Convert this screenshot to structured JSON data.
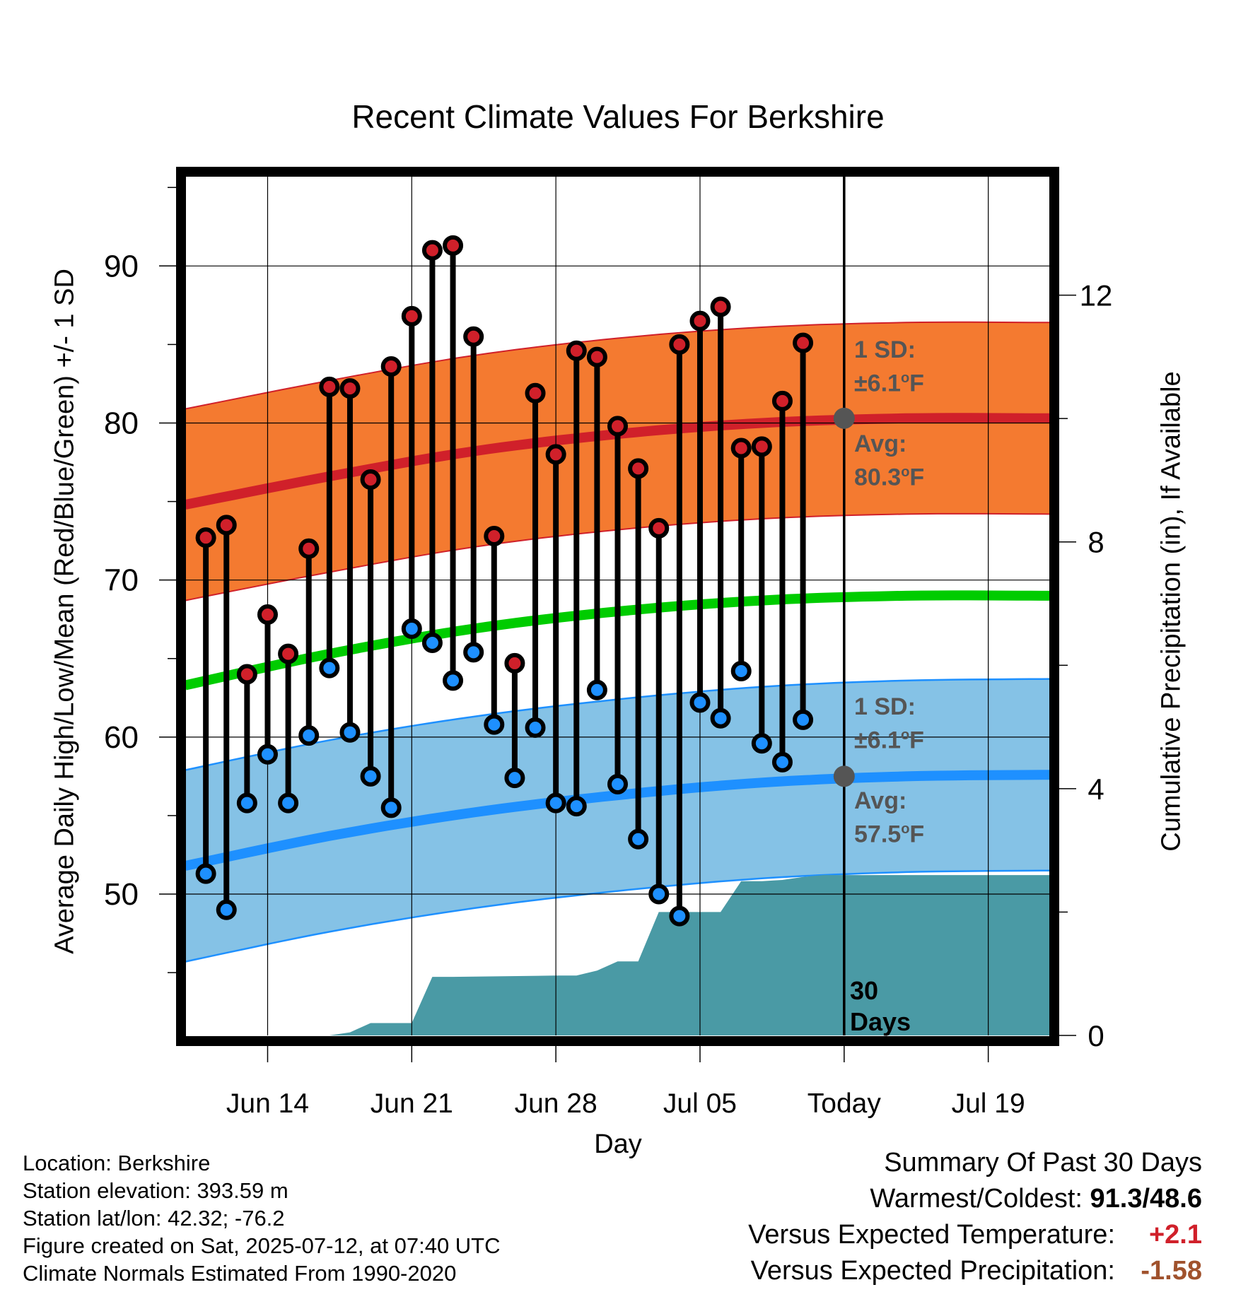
{
  "chart_data": {
    "type": "line",
    "title": "Recent Climate Values For Berkshire",
    "xlabel": "Day",
    "ylabel": "Average Daily High/Low/Mean (Red/Blue/Green) +/- 1 SD",
    "ylabel_right": "Cumulative Precipitation (in), If Available",
    "ylim": [
      41,
      96
    ],
    "ylim_right": [
      0,
      14
    ],
    "x_range": [
      "2025-06-10",
      "2025-07-22"
    ],
    "grid": true,
    "x_ticks": [
      {
        "date": "2025-06-14",
        "label": "Jun 14"
      },
      {
        "date": "2025-06-21",
        "label": "Jun 21"
      },
      {
        "date": "2025-06-28",
        "label": "Jun 28"
      },
      {
        "date": "2025-07-05",
        "label": "Jul 05"
      },
      {
        "date": "2025-07-12",
        "label": "Today"
      },
      {
        "date": "2025-07-19",
        "label": "Jul 19"
      }
    ],
    "y_ticks": [
      50,
      60,
      70,
      80,
      90
    ],
    "y_ticks_right": [
      0,
      4,
      8,
      12
    ],
    "today": "2025-07-12",
    "colors": {
      "high_band": "#f47a30",
      "high_mean": "#d0202a",
      "low_band": "#85c2e6",
      "low_mean": "#1e90ff",
      "mean_line": "#00cc00",
      "precip": "#4a9aa5",
      "high_marker": "#d0202a",
      "low_marker": "#1e90ff"
    },
    "normal_high": {
      "dates": [
        "2025-06-10",
        "2025-06-17",
        "2025-06-24",
        "2025-07-01",
        "2025-07-08",
        "2025-07-15",
        "2025-07-22"
      ],
      "mean": [
        74.8,
        76.6,
        78.2,
        79.3,
        80.0,
        80.3,
        80.3
      ],
      "sd": 6.1
    },
    "normal_low": {
      "dates": [
        "2025-06-10",
        "2025-06-17",
        "2025-06-24",
        "2025-07-01",
        "2025-07-08",
        "2025-07-15",
        "2025-07-22"
      ],
      "mean": [
        51.8,
        53.7,
        55.2,
        56.3,
        57.1,
        57.5,
        57.6
      ],
      "sd": 6.1
    },
    "normal_mean": {
      "dates": [
        "2025-06-10",
        "2025-06-17",
        "2025-06-24",
        "2025-07-01",
        "2025-07-08",
        "2025-07-15",
        "2025-07-22"
      ],
      "values": [
        63.3,
        65.3,
        66.9,
        68.0,
        68.7,
        69.0,
        69.0
      ]
    },
    "observed": {
      "dates": [
        "2025-06-11",
        "2025-06-12",
        "2025-06-13",
        "2025-06-14",
        "2025-06-15",
        "2025-06-16",
        "2025-06-17",
        "2025-06-18",
        "2025-06-19",
        "2025-06-20",
        "2025-06-21",
        "2025-06-22",
        "2025-06-23",
        "2025-06-24",
        "2025-06-25",
        "2025-06-26",
        "2025-06-27",
        "2025-06-28",
        "2025-06-29",
        "2025-06-30",
        "2025-07-01",
        "2025-07-02",
        "2025-07-03",
        "2025-07-04",
        "2025-07-05",
        "2025-07-06",
        "2025-07-07",
        "2025-07-08",
        "2025-07-09",
        "2025-07-10",
        "2025-07-11"
      ],
      "high": [
        72.7,
        73.5,
        64.0,
        67.8,
        65.3,
        72.0,
        82.3,
        82.2,
        76.4,
        83.6,
        86.8,
        91.0,
        91.3,
        85.5,
        72.8,
        64.7,
        81.9,
        78.0,
        84.6,
        84.2,
        79.8,
        77.1,
        73.3,
        85.0,
        86.5,
        87.4,
        78.4,
        78.5,
        81.4,
        85.1,
        null
      ],
      "low": [
        51.3,
        49.0,
        55.8,
        58.9,
        55.8,
        60.1,
        64.4,
        60.3,
        57.5,
        55.5,
        66.9,
        66.0,
        63.6,
        65.4,
        60.8,
        57.4,
        60.6,
        55.8,
        55.6,
        63.0,
        57.0,
        53.5,
        50.0,
        48.6,
        62.2,
        61.2,
        64.2,
        59.6,
        58.4,
        61.1,
        null
      ]
    },
    "precip": {
      "dates": [
        "2025-06-10",
        "2025-06-17",
        "2025-06-18",
        "2025-06-19",
        "2025-06-20",
        "2025-06-21",
        "2025-06-22",
        "2025-06-23",
        "2025-06-28",
        "2025-06-29",
        "2025-06-30",
        "2025-07-01",
        "2025-07-02",
        "2025-07-03",
        "2025-07-04",
        "2025-07-05",
        "2025-07-06",
        "2025-07-07",
        "2025-07-08",
        "2025-07-09",
        "2025-07-10",
        "2025-07-11",
        "2025-07-12",
        "2025-07-22"
      ],
      "values": [
        0.0,
        0.0,
        0.05,
        0.2,
        0.2,
        0.2,
        0.95,
        0.95,
        0.97,
        0.97,
        1.05,
        1.2,
        1.2,
        2.0,
        2.0,
        2.0,
        2.0,
        2.5,
        2.5,
        2.52,
        2.57,
        2.6,
        2.6,
        2.6
      ]
    }
  },
  "annotations": {
    "high_sd_line1": "1 SD:",
    "high_sd_pm": "±6.1",
    "high_avg_line1": "Avg:",
    "high_avg_value": "80.3",
    "low_sd_line1": "1 SD:",
    "low_sd_pm": "±6.1",
    "low_avg_line1": "Avg:",
    "low_avg_value": "57.5",
    "deg_sup": "o",
    "unit_f": "F",
    "days_line1": "30",
    "days_line2": "Days"
  },
  "metadata": {
    "location": "Location: Berkshire",
    "elevation": "Station elevation: 393.59 m",
    "latlon": "Station lat/lon: 42.32; -76.2",
    "created": "Figure created on Sat, 2025-07-12, at 07:40 UTC",
    "normals": "Climate Normals Estimated From 1990-2020"
  },
  "summary": {
    "heading": "Summary Of Past 30 Days",
    "warmest_coldest_label": "Warmest/Coldest:",
    "warmest_coldest_value": "91.3/48.6",
    "temp_label": "Versus Expected Temperature:",
    "temp_value": "+2.1",
    "temp_color": "#d0202a",
    "precip_label": "Versus Expected Precipitation:",
    "precip_value": "-1.58",
    "precip_color": "#a0522d"
  }
}
